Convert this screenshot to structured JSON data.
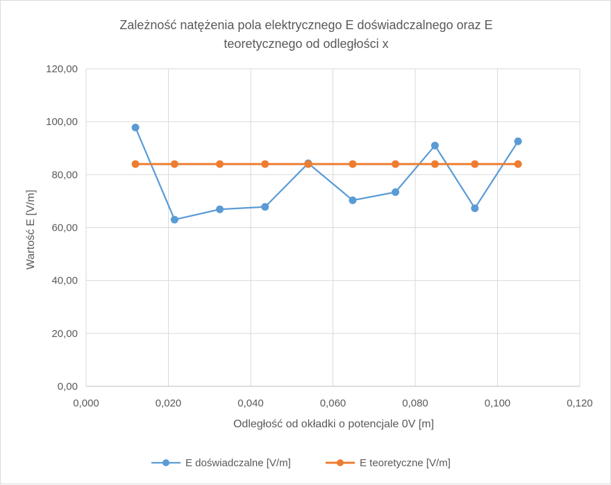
{
  "chart_data": {
    "type": "line",
    "title_lines": [
      "Zależność natężenia pola elektrycznego E doświadczalnego oraz E",
      "teoretycznego od odległości x"
    ],
    "xlabel": "Odległość od okładki o potencjale 0V [m]",
    "ylabel": "Wartość E [V/m]",
    "xlim": [
      0,
      0.12
    ],
    "ylim": [
      0,
      120
    ],
    "x_ticks": [
      0,
      0.02,
      0.04,
      0.06,
      0.08,
      0.1,
      0.12
    ],
    "x_tick_labels": [
      "0,000",
      "0,020",
      "0,040",
      "0,060",
      "0,080",
      "0,100",
      "0,120"
    ],
    "y_ticks": [
      0,
      20,
      40,
      60,
      80,
      100,
      120
    ],
    "y_tick_labels": [
      "0,00",
      "20,00",
      "40,00",
      "60,00",
      "80,00",
      "100,00",
      "120,00"
    ],
    "grid": true,
    "legend_position": "bottom",
    "x": [
      0.012,
      0.0215,
      0.0325,
      0.0435,
      0.054,
      0.0648,
      0.0752,
      0.0848,
      0.0945,
      0.105
    ],
    "series": [
      {
        "name": "E doświadczalne [V/m]",
        "color": "#5b9bd5",
        "values": [
          97.8,
          63.0,
          66.9,
          67.8,
          84.3,
          70.3,
          73.4,
          91.0,
          67.3,
          92.6
        ]
      },
      {
        "name": "E teoretyczne [V/m]",
        "color": "#ed7d31",
        "values": [
          84.0,
          84.0,
          84.0,
          84.0,
          84.0,
          84.0,
          84.0,
          84.0,
          84.0,
          84.0
        ]
      }
    ]
  }
}
